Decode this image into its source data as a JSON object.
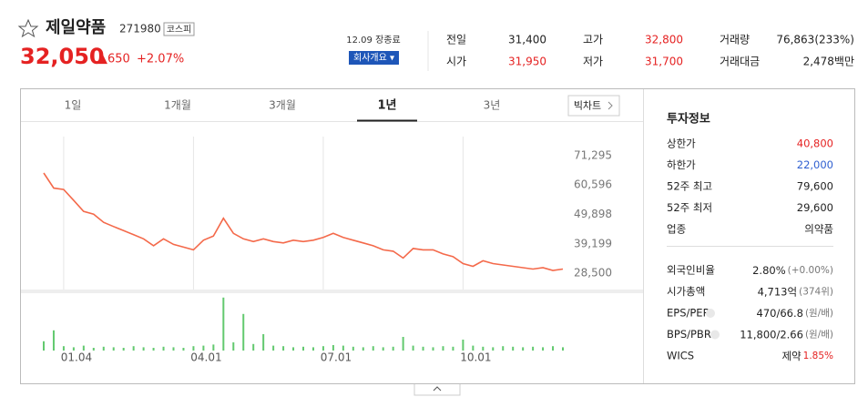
{
  "header": {
    "name": "제일약품",
    "code": "271980",
    "market": "코스피",
    "price": "32,050",
    "change": "▲650",
    "change_rate": "+2.07%",
    "status": "12.09 장종료",
    "company_button": "회사개요 ▾"
  },
  "summary": [
    {
      "label": "전일",
      "value": "31,400"
    },
    {
      "label": "고가",
      "value": "32,800",
      "color": "#e52222"
    },
    {
      "label": "거래량",
      "value": "76,863(233%)"
    },
    {
      "label": "시가",
      "value": "31,950",
      "color": "#e52222"
    },
    {
      "label": "저가",
      "value": "31,700",
      "color": "#e52222"
    },
    {
      "label": "거래대금",
      "value": "2,478백만"
    }
  ],
  "tabs": {
    "items": [
      "1일",
      "1개월",
      "3개월",
      "1년",
      "3년"
    ],
    "active": 3,
    "big_chart": "빅차트"
  },
  "chart_data": {
    "type": "line",
    "color": "#f4694a",
    "volume_color": "#63c96f",
    "grid": "x",
    "categories": [
      null,
      null,
      "01.04",
      null,
      null,
      null,
      null,
      null,
      null,
      null,
      null,
      null,
      null,
      null,
      null,
      "04.01",
      null,
      null,
      null,
      null,
      null,
      null,
      null,
      null,
      null,
      null,
      null,
      null,
      "07.01",
      null,
      null,
      null,
      null,
      null,
      null,
      null,
      null,
      null,
      null,
      null,
      null,
      null,
      "10.01",
      null,
      null,
      null,
      null,
      null,
      null,
      null,
      null,
      null,
      null
    ],
    "values": [
      65000,
      59500,
      59000,
      55000,
      51000,
      50000,
      47000,
      45500,
      44000,
      42500,
      41000,
      38500,
      41000,
      39000,
      38000,
      37000,
      40500,
      42000,
      48500,
      43000,
      41000,
      40000,
      41000,
      40000,
      39500,
      40500,
      40000,
      40500,
      41500,
      43000,
      41500,
      40500,
      39500,
      38500,
      37000,
      36500,
      34000,
      37500,
      37000,
      37000,
      35500,
      34500,
      32000,
      31000,
      33000,
      32000,
      31500,
      31000,
      30500,
      30000,
      30500,
      29500,
      30000
    ],
    "volume": [
      170000,
      370000,
      80000,
      60000,
      90000,
      50000,
      70000,
      60000,
      50000,
      80000,
      60000,
      50000,
      70000,
      60000,
      50000,
      80000,
      90000,
      110000,
      970000,
      150000,
      670000,
      120000,
      300000,
      90000,
      80000,
      60000,
      70000,
      60000,
      80000,
      100000,
      90000,
      70000,
      60000,
      80000,
      60000,
      70000,
      250000,
      90000,
      70000,
      60000,
      80000,
      70000,
      200000,
      90000,
      70000,
      60000,
      80000,
      70000,
      60000,
      70000,
      60000,
      80000,
      60000
    ],
    "ylim": [
      22530,
      78260
    ],
    "yticks": [
      {
        "value": 71295,
        "label": "71,295"
      },
      {
        "value": 60596,
        "label": "60,596"
      },
      {
        "value": 49898,
        "label": "49,898"
      },
      {
        "value": 39199,
        "label": "39,199"
      },
      {
        "value": 28500,
        "label": "28,500"
      }
    ],
    "y2lim": [
      0,
      1000000
    ]
  },
  "invest_info": {
    "title": "투자정보",
    "rows": [
      {
        "label": "상한가",
        "value": "40,800",
        "color": "#e52222"
      },
      {
        "label": "하한가",
        "value": "22,000",
        "color": "#2f5fd0"
      },
      {
        "label": "52주 최고",
        "value": "79,600"
      },
      {
        "label": "52주 최저",
        "value": "29,600"
      },
      {
        "label": "업종",
        "value": "의약품"
      }
    ],
    "rows2": [
      {
        "label": "외국인비율",
        "value": "2.80%",
        "unit": "(+0.00%)"
      },
      {
        "label": "시가총액",
        "value": "4,713억",
        "unit": "(374위)"
      },
      {
        "label": "EPS/PER",
        "value": "470/66.8",
        "unit": "(원/배)"
      },
      {
        "label": "BPS/PBR",
        "value": "11,800/2.66",
        "unit": "(원/배)"
      },
      {
        "label": "WICS",
        "value": "제약",
        "unit": "1.85%",
        "color": "#e52222"
      }
    ]
  }
}
